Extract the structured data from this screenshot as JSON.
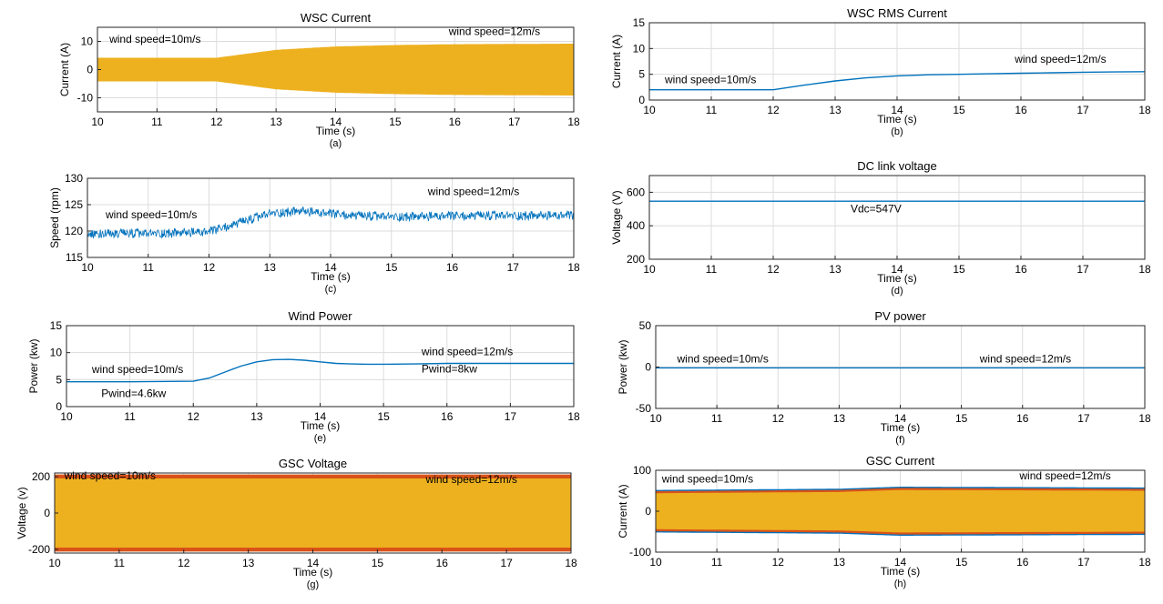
{
  "chart_data": [
    {
      "id": "a",
      "type": "line",
      "title": "WSC Current",
      "xlabel": "Time (s)",
      "ylabel": "Current (A)",
      "caption": "(a)",
      "xlim": [
        10,
        18
      ],
      "ylim": [
        -15,
        15
      ],
      "xticks": [
        10,
        11,
        12,
        13,
        14,
        15,
        16,
        17,
        18
      ],
      "yticks": [
        -10,
        0,
        10
      ],
      "grid": true,
      "annotations": [
        {
          "text": "wind speed=10m/s",
          "x": 10.2,
          "y": 9.5
        },
        {
          "text": "wind speed=12m/s",
          "x": 15.9,
          "y": 12.3
        }
      ],
      "series": [
        {
          "style": "envelope",
          "color": "#EDB120",
          "x": [
            10,
            12,
            13,
            14,
            15,
            16,
            17,
            18
          ],
          "upper": [
            4.2,
            4.2,
            7.0,
            8.2,
            8.7,
            9.0,
            9.1,
            9.2
          ],
          "lower": [
            -4.2,
            -4.2,
            -7.0,
            -8.2,
            -8.7,
            -9.0,
            -9.1,
            -9.2
          ]
        }
      ]
    },
    {
      "id": "b",
      "type": "line",
      "title": "WSC RMS Current",
      "xlabel": "Time (s)",
      "ylabel": "Current (A)",
      "caption": "(b)",
      "xlim": [
        10,
        18
      ],
      "ylim": [
        0,
        15
      ],
      "xticks": [
        10,
        11,
        12,
        13,
        14,
        15,
        16,
        17,
        18
      ],
      "yticks": [
        0,
        5,
        10,
        15
      ],
      "grid": true,
      "annotations": [
        {
          "text": "wind speed=10m/s",
          "x": 10.25,
          "y": 3.3
        },
        {
          "text": "wind speed=12m/s",
          "x": 15.9,
          "y": 7.2
        }
      ],
      "series": [
        {
          "style": "line",
          "color": "#0072BD",
          "x": [
            10,
            11,
            12,
            12.5,
            13,
            13.5,
            14,
            14.5,
            15,
            15.5,
            16,
            16.5,
            17,
            17.5,
            18
          ],
          "y": [
            2.0,
            2.0,
            2.0,
            2.9,
            3.7,
            4.3,
            4.7,
            4.9,
            5.0,
            5.1,
            5.2,
            5.3,
            5.4,
            5.45,
            5.5
          ]
        }
      ]
    },
    {
      "id": "c",
      "type": "line",
      "title": "",
      "xlabel": "Time (s)",
      "ylabel": "Speed (rpm)",
      "caption": "(c)",
      "xlim": [
        10,
        18
      ],
      "ylim": [
        115,
        130
      ],
      "xticks": [
        10,
        11,
        12,
        13,
        14,
        15,
        16,
        17,
        18
      ],
      "yticks": [
        115,
        120,
        125,
        130
      ],
      "grid": true,
      "annotations": [
        {
          "text": "wind speed=10m/s",
          "x": 10.3,
          "y": 122.4
        },
        {
          "text": "wind speed=12m/s",
          "x": 15.6,
          "y": 126.8
        }
      ],
      "series": [
        {
          "style": "noisy",
          "color": "#0072BD",
          "noise": 0.9,
          "x": [
            10,
            11,
            12,
            12.5,
            13,
            13.5,
            14,
            14.5,
            15,
            16,
            17,
            18
          ],
          "y": [
            119.5,
            119.5,
            119.8,
            121.5,
            123.3,
            123.8,
            123.2,
            122.8,
            122.7,
            122.8,
            122.9,
            122.9
          ]
        }
      ]
    },
    {
      "id": "d",
      "type": "line",
      "title": "DC link voltage",
      "xlabel": "Time (s)",
      "ylabel": "Voltage (V)",
      "caption": "(d)",
      "xlim": [
        10,
        18
      ],
      "ylim": [
        200,
        700
      ],
      "xticks": [
        10,
        11,
        12,
        13,
        14,
        15,
        16,
        17,
        18
      ],
      "yticks": [
        200,
        400,
        600
      ],
      "grid": true,
      "annotations": [
        {
          "text": "Vdc=547V",
          "x": 13.25,
          "y": 480
        }
      ],
      "series": [
        {
          "style": "line",
          "color": "#0072BD",
          "x": [
            10,
            18
          ],
          "y": [
            547,
            547
          ]
        }
      ]
    },
    {
      "id": "e",
      "type": "line",
      "title": "Wind Power",
      "xlabel": "Time (s)",
      "ylabel": "Power (kw)",
      "caption": "(e)",
      "xlim": [
        10,
        18
      ],
      "ylim": [
        0,
        15
      ],
      "xticks": [
        10,
        11,
        12,
        13,
        14,
        15,
        16,
        17,
        18
      ],
      "yticks": [
        0,
        5,
        10,
        15
      ],
      "grid": true,
      "annotations": [
        {
          "text": "wind speed=10m/s",
          "x": 10.4,
          "y": 6.2
        },
        {
          "text": "Pwind=4.6kw",
          "x": 10.55,
          "y": 1.8
        },
        {
          "text": "wind speed=12m/s",
          "x": 15.6,
          "y": 9.5
        },
        {
          "text": "Pwind=8kw",
          "x": 15.6,
          "y": 6.3
        }
      ],
      "series": [
        {
          "style": "line",
          "color": "#0072BD",
          "x": [
            10,
            11,
            12,
            12.25,
            12.5,
            12.75,
            13,
            13.25,
            13.5,
            13.75,
            14,
            14.25,
            14.5,
            14.75,
            15,
            15.5,
            16,
            17,
            18
          ],
          "y": [
            4.6,
            4.6,
            4.7,
            5.3,
            6.4,
            7.5,
            8.3,
            8.7,
            8.75,
            8.6,
            8.3,
            8.0,
            7.9,
            7.85,
            7.85,
            7.9,
            8.0,
            8.0,
            8.0
          ]
        }
      ]
    },
    {
      "id": "f",
      "type": "line",
      "title": "PV power",
      "xlabel": "Time (s)",
      "ylabel": "Power (kw)",
      "caption": "(f)",
      "xlim": [
        10,
        18
      ],
      "ylim": [
        -50,
        50
      ],
      "xticks": [
        10,
        11,
        12,
        13,
        14,
        15,
        16,
        17,
        18
      ],
      "yticks": [
        -50,
        0,
        50
      ],
      "grid": true,
      "annotations": [
        {
          "text": "wind speed=10m/s",
          "x": 10.35,
          "y": 5.5
        },
        {
          "text": "wind speed=12m/s",
          "x": 15.3,
          "y": 5.5
        }
      ],
      "series": [
        {
          "style": "line",
          "color": "#0072BD",
          "x": [
            10,
            18
          ],
          "y": [
            -1,
            -1
          ]
        }
      ]
    },
    {
      "id": "g",
      "type": "line",
      "title": "GSC Voltage",
      "xlabel": "Time (s)",
      "ylabel": "Voltage (v)",
      "caption": "(g)",
      "xlim": [
        10,
        18
      ],
      "ylim": [
        -220,
        220
      ],
      "xticks": [
        10,
        11,
        12,
        13,
        14,
        15,
        16,
        17,
        18
      ],
      "yticks": [
        -200,
        0,
        200
      ],
      "grid": true,
      "annotations": [
        {
          "text": "wind speed=10m/s",
          "x": 10.15,
          "y": 185
        },
        {
          "text": "wind speed=12m/s",
          "x": 15.75,
          "y": 165
        }
      ],
      "series": [
        {
          "style": "envelope",
          "color": "#D95319",
          "x": [
            10,
            18
          ],
          "upper": [
            212,
            212
          ],
          "lower": [
            -212,
            -212
          ]
        },
        {
          "style": "envelope",
          "color": "#EDB120",
          "x": [
            10,
            18
          ],
          "upper": [
            190,
            190
          ],
          "lower": [
            -190,
            -190
          ]
        }
      ]
    },
    {
      "id": "h",
      "type": "line",
      "title": "GSC Current",
      "xlabel": "Time (s)",
      "ylabel": "Current (A)",
      "caption": "(h)",
      "xlim": [
        10,
        18
      ],
      "ylim": [
        -100,
        100
      ],
      "xticks": [
        10,
        11,
        12,
        13,
        14,
        15,
        16,
        17,
        18
      ],
      "yticks": [
        -100,
        0,
        100
      ],
      "grid": true,
      "annotations": [
        {
          "text": "wind speed=10m/s",
          "x": 10.1,
          "y": 70
        },
        {
          "text": "wind speed=12m/s",
          "x": 15.95,
          "y": 78
        }
      ],
      "series": [
        {
          "style": "envelope",
          "color": "#0072BD",
          "x": [
            10,
            13,
            14,
            18
          ],
          "upper": [
            52,
            55,
            60,
            58
          ],
          "lower": [
            -52,
            -55,
            -60,
            -58
          ]
        },
        {
          "style": "envelope",
          "color": "#D95319",
          "x": [
            10,
            13,
            14,
            18
          ],
          "upper": [
            49,
            52,
            57,
            55
          ],
          "lower": [
            -49,
            -52,
            -57,
            -55
          ]
        },
        {
          "style": "envelope",
          "color": "#EDB120",
          "x": [
            10,
            13,
            14,
            18
          ],
          "upper": [
            44,
            47,
            52,
            50
          ],
          "lower": [
            -44,
            -47,
            -52,
            -50
          ]
        }
      ]
    }
  ]
}
